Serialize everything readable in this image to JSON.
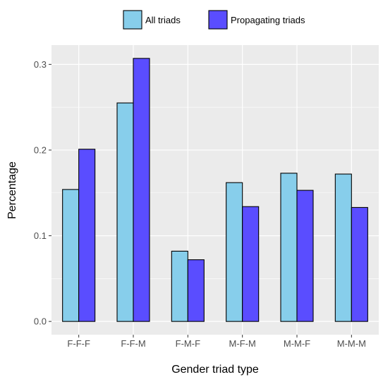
{
  "chart_data": {
    "type": "bar",
    "xlabel": "Gender triad type",
    "ylabel": "Percentage",
    "categories": [
      "F-F-F",
      "F-F-M",
      "F-M-F",
      "M-F-M",
      "M-M-F",
      "M-M-M"
    ],
    "series": [
      {
        "name": "All triads",
        "color": "#87ceeb",
        "values": [
          0.154,
          0.255,
          0.082,
          0.162,
          0.173,
          0.172
        ]
      },
      {
        "name": "Propagating triads",
        "color": "#5a4dff",
        "values": [
          0.201,
          0.307,
          0.072,
          0.134,
          0.153,
          0.133
        ]
      }
    ],
    "ylim": [
      -0.0155,
      0.3225
    ],
    "yticks": [
      0.0,
      0.1,
      0.2,
      0.3
    ],
    "ytick_labels": [
      "0.0",
      "0.1",
      "0.2",
      "0.3"
    ],
    "grid": true,
    "panel_background": "#ebebeb",
    "legend_position": "top"
  }
}
